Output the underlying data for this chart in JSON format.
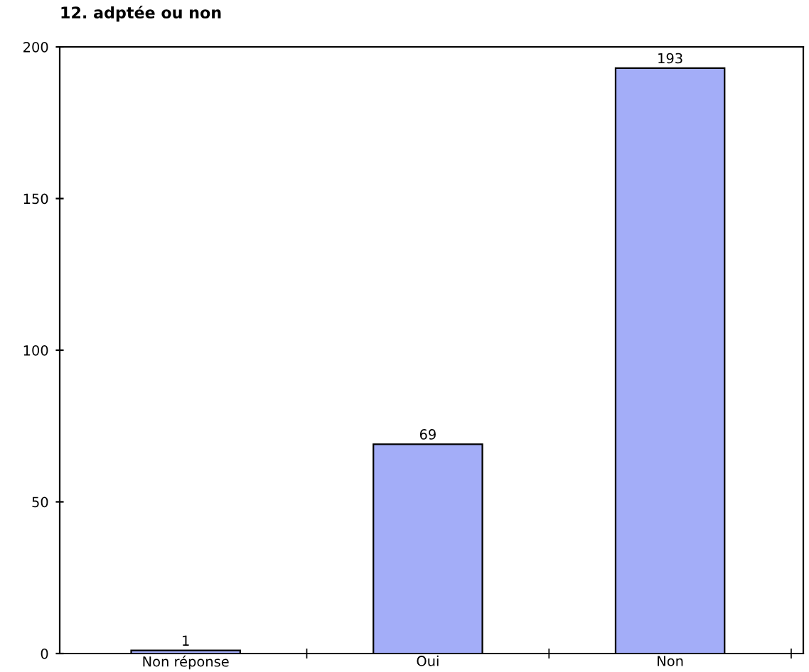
{
  "chart_data": {
    "type": "bar",
    "title": "12. adptée ou non",
    "categories": [
      "Non réponse",
      "Oui",
      "Non"
    ],
    "values": [
      1,
      69,
      193
    ],
    "color": "#a3adf8",
    "ylim": [
      0,
      200
    ],
    "yticks": [
      0,
      50,
      100,
      150,
      200
    ],
    "grid": false,
    "data_labels": true
  }
}
